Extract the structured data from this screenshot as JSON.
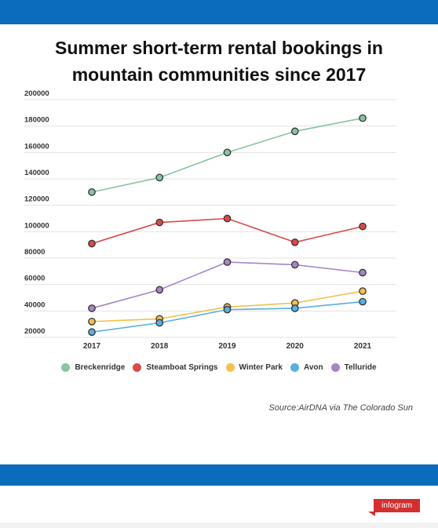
{
  "header": {
    "title_line1": "Summer short-term rental bookings in",
    "title_line2": "mountain communities since 2017"
  },
  "source": "Source:AirDNA via The Colorado Sun",
  "brand": "infogram",
  "colors": {
    "bar": "#0b6bbd",
    "brand": "#d32f2f"
  },
  "chart_data": {
    "type": "line",
    "title": "Summer short-term rental bookings in mountain communities since 2017",
    "categories": [
      "2017",
      "2018",
      "2019",
      "2020",
      "2021"
    ],
    "y_ticks": [
      "200000",
      "180000",
      "160000",
      "140000",
      "120000",
      "100000",
      "80000",
      "60000",
      "40000",
      "20000"
    ],
    "ylim": [
      20000,
      200000
    ],
    "grid": true,
    "legend_position": "bottom",
    "xlabel": "",
    "ylabel": "",
    "series": [
      {
        "name": "Breckenridge",
        "color": "#88c4a0",
        "values": [
          130000,
          141000,
          160000,
          176000,
          186000
        ]
      },
      {
        "name": "Steamboat Springs",
        "color": "#d9494b",
        "values": [
          91000,
          107000,
          110000,
          92000,
          104000
        ]
      },
      {
        "name": "Winter Park",
        "color": "#f2c14e",
        "values": [
          32000,
          34000,
          43000,
          46000,
          55000
        ]
      },
      {
        "name": "Avon",
        "color": "#5aaee0",
        "values": [
          24000,
          31000,
          41000,
          42000,
          47000
        ]
      },
      {
        "name": "Telluride",
        "color": "#a784c6",
        "values": [
          42000,
          56000,
          77000,
          75000,
          69000
        ]
      }
    ]
  }
}
